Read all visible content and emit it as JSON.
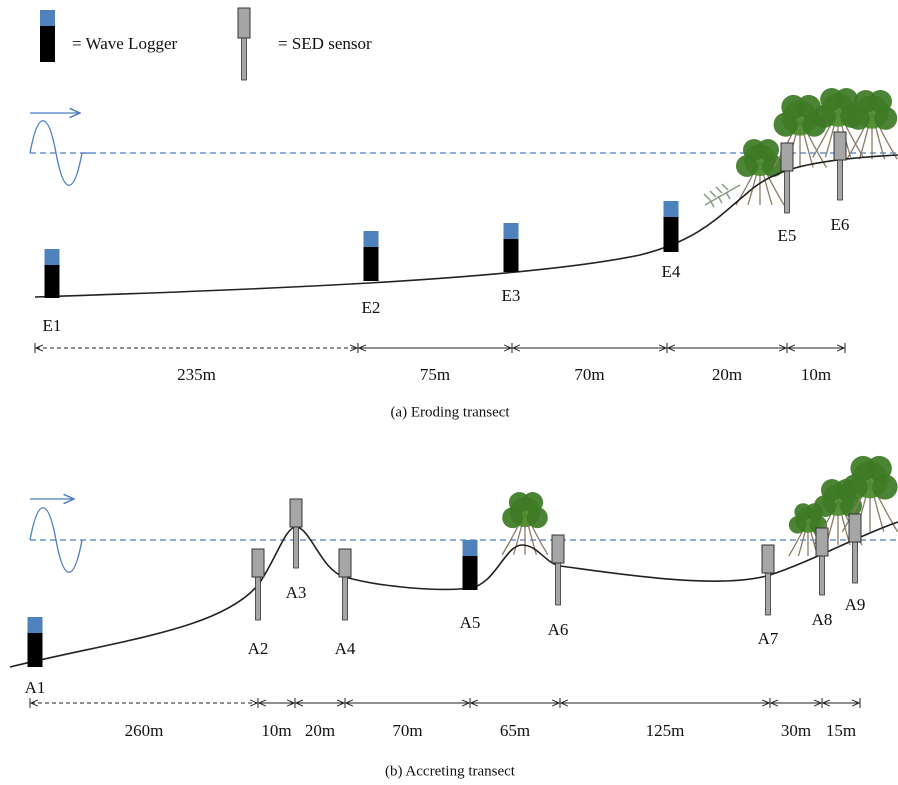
{
  "legend": {
    "wave_logger": "= Wave Logger",
    "sed_sensor": "= SED sensor"
  },
  "eroding": {
    "stations": [
      "E1",
      "E2",
      "E3",
      "E4",
      "E5",
      "E6"
    ],
    "distances": [
      "235m",
      "75m",
      "70m",
      "20m",
      "10m"
    ],
    "caption": "(a) Eroding transect"
  },
  "accreting": {
    "stations": [
      "A1",
      "A2",
      "A3",
      "A4",
      "A5",
      "A6",
      "A7",
      "A8",
      "A9"
    ],
    "distances": [
      "260m",
      "10m",
      "20m",
      "70m",
      "65m",
      "125m",
      "30m",
      "15m"
    ],
    "caption": "(b) Accreting transect"
  }
}
